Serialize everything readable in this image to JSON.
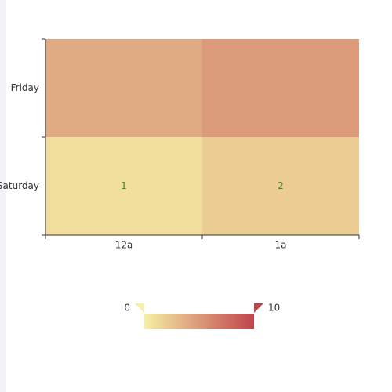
{
  "chart_data": {
    "type": "heatmap",
    "x_categories": [
      "12a",
      "1a"
    ],
    "y_categories": [
      "Friday",
      "Saturday"
    ],
    "values": [
      [
        4,
        5
      ],
      [
        1,
        2
      ]
    ],
    "value_labels": [
      [
        null,
        null
      ],
      [
        "1",
        "2"
      ]
    ],
    "label_color": "#3d8b1f",
    "visual_map": {
      "min": 0,
      "max": 10,
      "colors": [
        "#f6efa6",
        "#bf444c"
      ]
    }
  }
}
